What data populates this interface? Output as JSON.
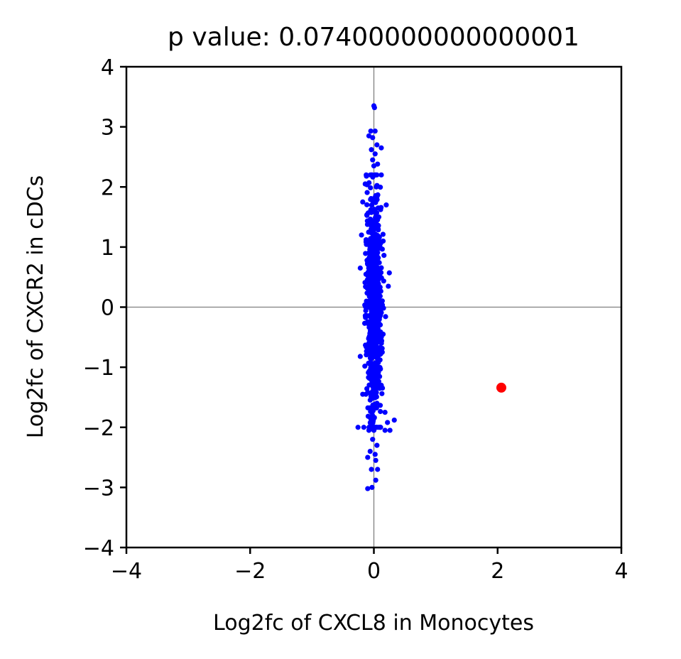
{
  "chart_data": {
    "type": "scatter",
    "title": "p value: 0.07400000000000001",
    "xlabel": "Log2fc of CXCL8 in Monocytes",
    "ylabel": "Log2fc of CXCR2 in cDCs",
    "xlim": [
      -4,
      4
    ],
    "ylim": [
      -4,
      4
    ],
    "xticks": [
      "−4",
      "−2",
      "0",
      "2",
      "4"
    ],
    "yticks": [
      "4",
      "3",
      "2",
      "1",
      "0",
      "−1",
      "−2",
      "−3",
      "−4"
    ],
    "reference_lines": {
      "x": 0,
      "y": 0
    },
    "grid": false,
    "colors": {
      "background_points": "#0000ff",
      "highlight_point": "#ff0000",
      "reference_line": "#808080"
    },
    "series": [
      {
        "values": [
          [
            0.0,
            3.35
          ],
          [
            0.01,
            3.32
          ],
          [
            -0.05,
            2.93
          ],
          [
            0.02,
            2.93
          ],
          [
            -0.08,
            2.85
          ],
          [
            -0.02,
            2.82
          ],
          [
            0.05,
            2.7
          ],
          [
            0.12,
            2.65
          ],
          [
            -0.04,
            2.62
          ],
          [
            0.02,
            2.55
          ],
          [
            -0.02,
            2.45
          ],
          [
            0.06,
            2.38
          ],
          [
            0.0,
            2.35
          ],
          [
            0.12,
            2.2
          ],
          [
            -0.12,
            2.18
          ],
          [
            -0.14,
            2.05
          ],
          [
            0.04,
            2.0
          ],
          [
            -0.18,
            1.75
          ],
          [
            0.2,
            1.7
          ],
          [
            0.08,
            1.5
          ],
          [
            -0.2,
            1.2
          ],
          [
            0.15,
            1.1
          ],
          [
            0.06,
            0.8
          ],
          [
            -0.22,
            0.65
          ],
          [
            0.25,
            0.57
          ],
          [
            0.05,
            0.3
          ],
          [
            -0.12,
            0.1
          ],
          [
            0.08,
            -0.2
          ],
          [
            0.1,
            -0.5
          ],
          [
            -0.22,
            -0.82
          ],
          [
            0.02,
            -1.0
          ],
          [
            0.12,
            -1.3
          ],
          [
            -0.18,
            -1.45
          ],
          [
            0.05,
            -1.6
          ],
          [
            0.18,
            -1.75
          ],
          [
            0.22,
            -1.92
          ],
          [
            0.33,
            -1.88
          ],
          [
            -0.05,
            -1.95
          ],
          [
            -0.08,
            -2.05
          ],
          [
            0.0,
            -2.05
          ],
          [
            0.18,
            -2.05
          ],
          [
            0.26,
            -2.05
          ],
          [
            -0.02,
            -2.2
          ],
          [
            0.05,
            -2.3
          ],
          [
            -0.06,
            -2.4
          ],
          [
            0.02,
            -2.45
          ],
          [
            -0.1,
            -2.5
          ],
          [
            0.03,
            -2.55
          ],
          [
            -0.04,
            -2.7
          ],
          [
            0.06,
            -2.7
          ],
          [
            0.03,
            -2.88
          ],
          [
            -0.03,
            -3.0
          ],
          [
            -0.1,
            -3.02
          ]
        ],
        "distribution": {
          "x_mean": 0.0,
          "x_sd": 0.06,
          "y_mean": 0.0,
          "y_sd": 0.9,
          "count": 900
        }
      },
      {
        "values": [
          [
            2.06,
            -1.34
          ]
        ]
      }
    ]
  }
}
